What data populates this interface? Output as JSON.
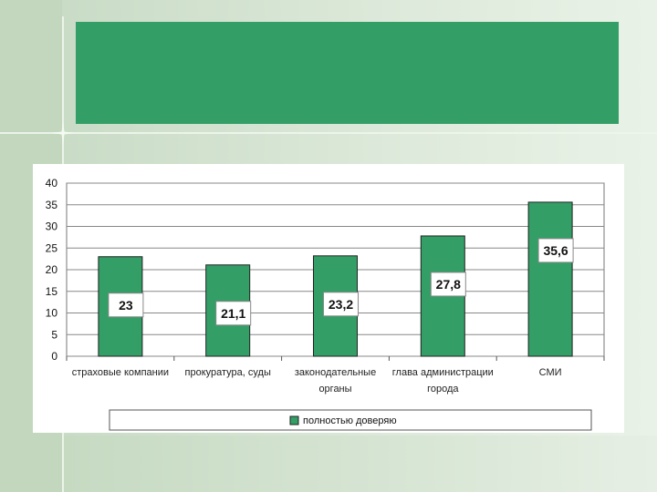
{
  "title_band": {
    "text": "",
    "color": "#339e66"
  },
  "chart_data": {
    "type": "bar",
    "categories": [
      [
        "страховые компании"
      ],
      [
        "прокуратура, суды"
      ],
      [
        "законодательные",
        "органы"
      ],
      [
        "глава администрации",
        "города"
      ],
      [
        "СМИ"
      ]
    ],
    "series": [
      {
        "name": "полностью доверяю",
        "values": [
          23,
          21.1,
          23.2,
          27.8,
          35.6
        ],
        "color": "#339e66"
      }
    ],
    "data_labels": [
      "23",
      "21,1",
      "23,2",
      "27,8",
      "35,6"
    ],
    "y_ticks": [
      "0",
      "5",
      "10",
      "15",
      "20",
      "25",
      "30",
      "35",
      "40"
    ],
    "ylim": [
      0,
      40
    ],
    "grid": true,
    "legend_position": "bottom"
  }
}
